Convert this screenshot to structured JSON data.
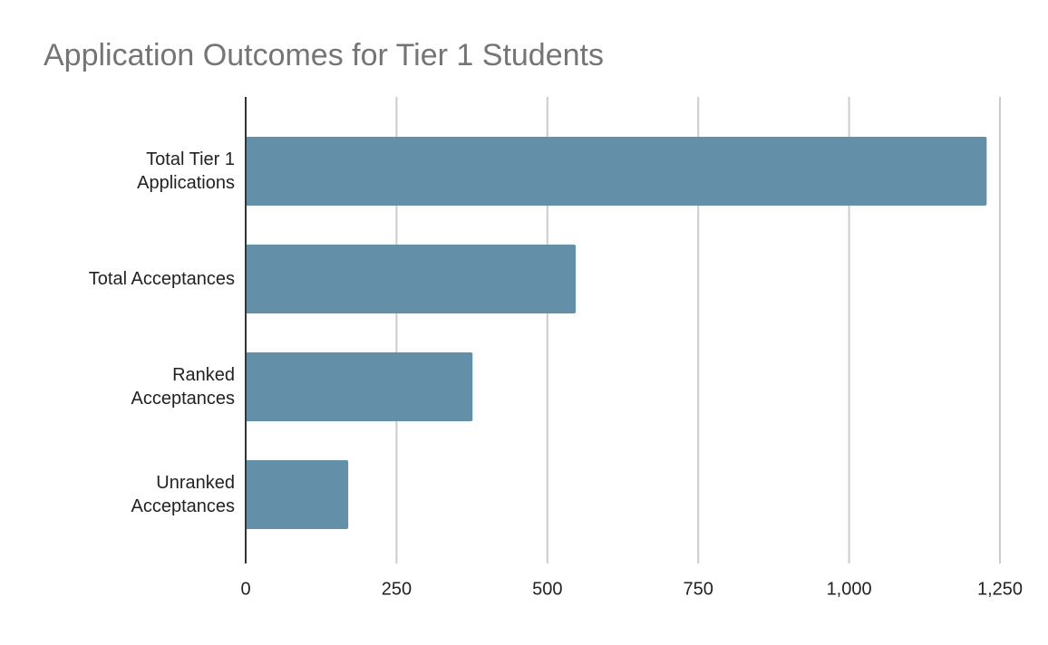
{
  "chart_data": {
    "type": "bar",
    "orientation": "horizontal",
    "title": "Application Outcomes for Tier 1 Students",
    "categories": [
      "Total Tier 1 Applications",
      "Total Acceptances",
      "Ranked Acceptances",
      "Unranked Acceptances"
    ],
    "values": [
      1228,
      547,
      376,
      170
    ],
    "color": "#648fa8",
    "xlim": [
      0,
      1250
    ],
    "xticks": [
      0,
      250,
      500,
      750,
      {
        "value": 1000,
        "label": "1,000"
      },
      {
        "value": 1250,
        "label": "1,250"
      }
    ],
    "grid": true
  }
}
